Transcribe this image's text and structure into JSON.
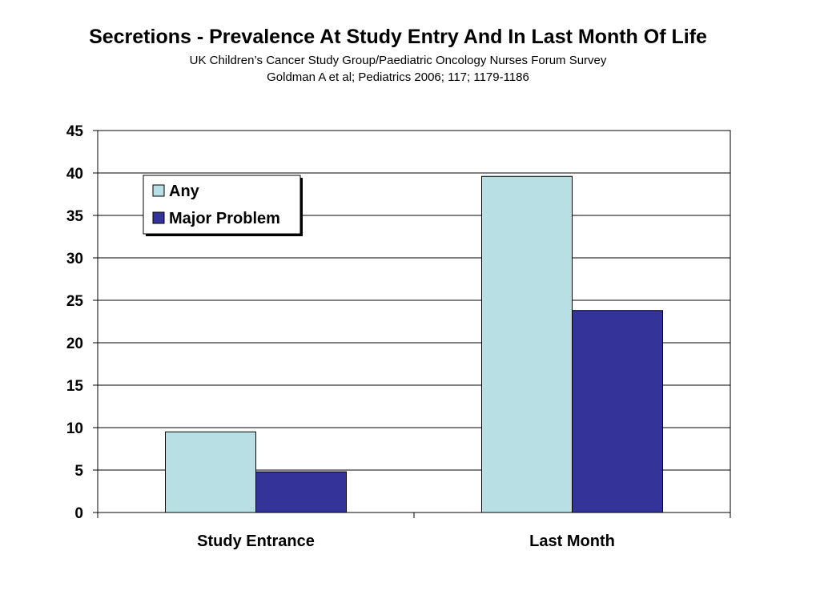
{
  "title": "Secretions - Prevalence At Study Entry And In Last Month Of Life",
  "subtitle": "UK Children’s Cancer Study Group/Paediatric Oncology Nurses Forum Survey",
  "citation": "Goldman A et al; Pediatrics 2006; 117; 1179-1186",
  "chart_data": {
    "type": "bar",
    "categories": [
      "Study Entrance",
      "Last Month"
    ],
    "series": [
      {
        "name": "Any",
        "values": [
          9.5,
          39.6
        ],
        "color": "#b8dfe3"
      },
      {
        "name": "Major Problem",
        "values": [
          4.8,
          23.8
        ],
        "color": "#333399"
      }
    ],
    "ylim": [
      0,
      45
    ],
    "yticks": [
      0,
      5,
      10,
      15,
      20,
      25,
      30,
      35,
      40,
      45
    ],
    "grid": true,
    "legend_position": "top-left"
  }
}
